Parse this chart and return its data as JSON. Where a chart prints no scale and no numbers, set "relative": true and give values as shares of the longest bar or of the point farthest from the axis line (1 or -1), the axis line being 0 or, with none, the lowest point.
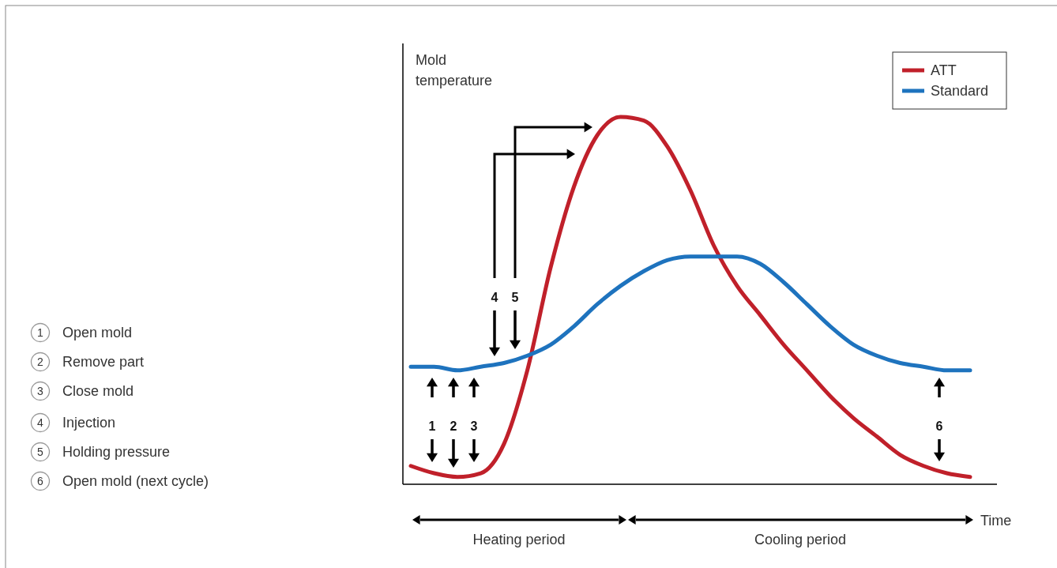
{
  "chart_data": {
    "type": "line",
    "relative": true,
    "xlabel": "Time",
    "ylabel": "Mold temperature",
    "legend": "top right",
    "line_style": "solid",
    "marker": "none",
    "categories": [
      null,
      null,
      null,
      null,
      null,
      null,
      null,
      null,
      null,
      null,
      null,
      null,
      null,
      null,
      null,
      null,
      null,
      null,
      null,
      null,
      null,
      null,
      null,
      null,
      null
    ],
    "series": [
      {
        "name": "ATT",
        "color": "#c0202a",
        "values": [
          0.05,
          0.03,
          0.02,
          0.03,
          0.11,
          0.31,
          0.59,
          0.81,
          0.95,
          1.0,
          0.99,
          0.92,
          0.8,
          0.65,
          0.54,
          0.46,
          0.38,
          0.31,
          0.24,
          0.18,
          0.13,
          0.08,
          0.05,
          0.03,
          0.02
        ]
      },
      {
        "name": "Standard",
        "color": "#1e73be",
        "values": [
          0.32,
          0.32,
          0.31,
          0.32,
          0.33,
          0.35,
          0.38,
          0.43,
          0.49,
          0.54,
          0.58,
          0.61,
          0.62,
          0.62,
          0.62,
          0.6,
          0.55,
          0.49,
          0.43,
          0.38,
          0.35,
          0.33,
          0.32,
          0.31,
          0.31
        ]
      }
    ],
    "annotations": [
      "1",
      "2",
      "3",
      "4",
      "5",
      "6",
      "Open mold",
      "Remove part",
      "Close mold",
      "Injection",
      "Holding pressure",
      "Open mold (next cycle)",
      "1",
      "2",
      "3",
      "4",
      "5",
      "6",
      "Heating period",
      "Cooling period"
    ]
  }
}
